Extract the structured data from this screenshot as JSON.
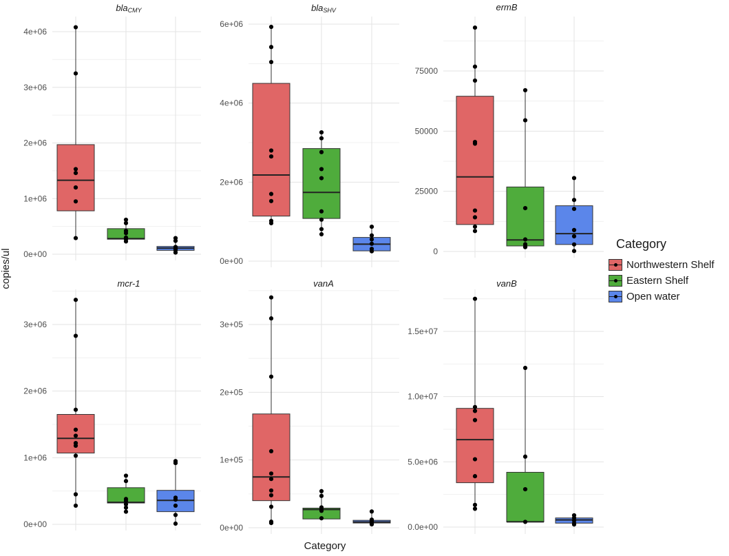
{
  "axes": {
    "xlabel": "Category",
    "ylabel": "copies/ul"
  },
  "legend": {
    "title": "Category",
    "items": [
      {
        "label": "Northwestern Shelf",
        "color": "#e06666"
      },
      {
        "label": "Eastern Shelf",
        "color": "#4fac3c"
      },
      {
        "label": "Open water",
        "color": "#5b86ea"
      }
    ]
  },
  "chart_data": [
    {
      "type": "box",
      "title": "blaCMY",
      "title_main": "bla",
      "title_sub": "CMY",
      "ylim": [
        0,
        4200000
      ],
      "ticks": [
        {
          "v": 0,
          "label": "0e+00"
        },
        {
          "v": 1000000,
          "label": "1e+06"
        },
        {
          "v": 2000000,
          "label": "2e+06"
        },
        {
          "v": 3000000,
          "label": "3e+06"
        },
        {
          "v": 4000000,
          "label": "4e+06"
        }
      ],
      "groups": [
        {
          "category": "Northwestern Shelf",
          "q1": 780000,
          "median": 1330000,
          "q3": 1970000,
          "whisker_low": 290000,
          "whisker_high": 4080000,
          "points": [
            4080000,
            3250000,
            1530000,
            1460000,
            1200000,
            950000,
            290000
          ]
        },
        {
          "category": "Eastern Shelf",
          "q1": 270000,
          "median": 280000,
          "q3": 460000,
          "whisker_low": 230000,
          "whisker_high": 620000,
          "points": [
            620000,
            560000,
            420000,
            380000,
            300000,
            270000,
            230000
          ]
        },
        {
          "category": "Open water",
          "q1": 70000,
          "median": 110000,
          "q3": 140000,
          "whisker_low": 30000,
          "whisker_high": 290000,
          "points": [
            290000,
            240000,
            130000,
            110000,
            90000,
            70000,
            30000
          ]
        }
      ]
    },
    {
      "type": "box",
      "title": "blaSHV",
      "title_main": "bla",
      "title_sub": "SHV",
      "ylim": [
        0,
        6000000
      ],
      "ticks": [
        {
          "v": 0,
          "label": "0e+00"
        },
        {
          "v": 2000000,
          "label": "2e+06"
        },
        {
          "v": 4000000,
          "label": "4e+06"
        },
        {
          "v": 6000000,
          "label": "6e+06"
        }
      ],
      "groups": [
        {
          "category": "Northwestern Shelf",
          "q1": 1140000,
          "median": 2180000,
          "q3": 4500000,
          "whisker_low": 960000,
          "whisker_high": 5930000,
          "points": [
            5930000,
            5420000,
            5040000,
            2800000,
            2650000,
            1700000,
            1520000,
            1020000,
            960000
          ]
        },
        {
          "category": "Eastern Shelf",
          "q1": 1080000,
          "median": 1740000,
          "q3": 2850000,
          "whisker_low": 680000,
          "whisker_high": 3260000,
          "points": [
            3260000,
            3110000,
            2760000,
            2330000,
            2100000,
            1260000,
            1050000,
            810000,
            680000
          ]
        },
        {
          "category": "Open water",
          "q1": 260000,
          "median": 430000,
          "q3": 600000,
          "whisker_low": 240000,
          "whisker_high": 870000,
          "points": [
            870000,
            650000,
            550000,
            440000,
            310000,
            250000
          ]
        }
      ]
    },
    {
      "type": "box",
      "title": "ermB",
      "title_main": "ermB",
      "title_sub": "",
      "ylim": [
        0,
        95000
      ],
      "ticks": [
        {
          "v": 0,
          "label": "0"
        },
        {
          "v": 25000,
          "label": "25000"
        },
        {
          "v": 50000,
          "label": "50000"
        },
        {
          "v": 75000,
          "label": "75000"
        }
      ],
      "groups": [
        {
          "category": "Northwestern Shelf",
          "q1": 11200,
          "median": 31000,
          "q3": 64500,
          "whisker_low": 8500,
          "whisker_high": 93000,
          "points": [
            93000,
            76800,
            71000,
            45500,
            44800,
            17000,
            14200,
            10300,
            8500
          ]
        },
        {
          "category": "Eastern Shelf",
          "q1": 2300,
          "median": 4800,
          "q3": 26800,
          "whisker_low": 1800,
          "whisker_high": 67000,
          "points": [
            67000,
            54500,
            18000,
            5000,
            3000,
            2200,
            1800
          ]
        },
        {
          "category": "Open water",
          "q1": 2900,
          "median": 7400,
          "q3": 19000,
          "whisker_low": 200,
          "whisker_high": 30500,
          "points": [
            30500,
            21400,
            17700,
            8900,
            6300,
            2900,
            200
          ]
        }
      ]
    },
    {
      "type": "box",
      "title": "mcr-1",
      "title_main": "mcr-1",
      "title_sub": "",
      "ylim": [
        0,
        3500000
      ],
      "ticks": [
        {
          "v": 0,
          "label": "0e+00"
        },
        {
          "v": 1000000,
          "label": "1e+06"
        },
        {
          "v": 2000000,
          "label": "2e+06"
        },
        {
          "v": 3000000,
          "label": "3e+06"
        }
      ],
      "groups": [
        {
          "category": "Northwestern Shelf",
          "q1": 1070000,
          "median": 1290000,
          "q3": 1650000,
          "whisker_low": 280000,
          "whisker_high": 3370000,
          "points": [
            3370000,
            2830000,
            1720000,
            1420000,
            1330000,
            1220000,
            1180000,
            1030000,
            450000,
            280000
          ]
        },
        {
          "category": "Eastern Shelf",
          "q1": 320000,
          "median": 330000,
          "q3": 550000,
          "whisker_low": 190000,
          "whisker_high": 730000,
          "points": [
            730000,
            650000,
            380000,
            350000,
            300000,
            250000,
            190000
          ]
        },
        {
          "category": "Open water",
          "q1": 190000,
          "median": 360000,
          "q3": 510000,
          "whisker_low": 10000,
          "whisker_high": 950000,
          "points": [
            950000,
            920000,
            400000,
            370000,
            280000,
            140000,
            10000
          ]
        }
      ]
    },
    {
      "type": "box",
      "title": "vanA",
      "title_main": "vanA",
      "title_sub": "",
      "ylim": [
        0,
        350000
      ],
      "ticks": [
        {
          "v": 0,
          "label": "0e+00"
        },
        {
          "v": 100000,
          "label": "1e+05"
        },
        {
          "v": 200000,
          "label": "2e+05"
        },
        {
          "v": 300000,
          "label": "3e+05"
        }
      ],
      "groups": [
        {
          "category": "Northwestern Shelf",
          "q1": 40000,
          "median": 75000,
          "q3": 168000,
          "whisker_low": 7000,
          "whisker_high": 340000,
          "points": [
            340000,
            309000,
            223000,
            113000,
            80000,
            72000,
            55000,
            48000,
            31000,
            9000,
            7000
          ]
        },
        {
          "category": "Eastern Shelf",
          "q1": 13000,
          "median": 27000,
          "q3": 29000,
          "whisker_low": 13000,
          "whisker_high": 54000,
          "points": [
            54000,
            47000,
            30000,
            27000,
            25000,
            14000
          ]
        },
        {
          "category": "Open water",
          "q1": 7000,
          "median": 8500,
          "q3": 11000,
          "whisker_low": 5000,
          "whisker_high": 24000,
          "points": [
            24000,
            12000,
            10000,
            8000,
            6000,
            5000
          ]
        }
      ]
    },
    {
      "type": "box",
      "title": "vanB",
      "title_main": "vanB",
      "title_sub": "",
      "ylim": [
        0,
        18000000
      ],
      "ticks": [
        {
          "v": 0,
          "label": "0.0e+00"
        },
        {
          "v": 5000000,
          "label": "5.0e+06"
        },
        {
          "v": 10000000,
          "label": "1.0e+07"
        },
        {
          "v": 15000000,
          "label": "1.5e+07"
        }
      ],
      "groups": [
        {
          "category": "Northwestern Shelf",
          "q1": 3400000,
          "median": 6700000,
          "q3": 9100000,
          "whisker_low": 1400000,
          "whisker_high": 17500000,
          "points": [
            17500000,
            9200000,
            8900000,
            8200000,
            5200000,
            3900000,
            1700000,
            1400000
          ]
        },
        {
          "category": "Eastern Shelf",
          "q1": 400000,
          "median": 400000,
          "q3": 4200000,
          "whisker_low": 400000,
          "whisker_high": 12200000,
          "points": [
            12200000,
            5400000,
            2900000,
            400000
          ]
        },
        {
          "category": "Open water",
          "q1": 300000,
          "median": 550000,
          "q3": 700000,
          "whisker_low": 200000,
          "whisker_high": 900000,
          "points": [
            900000,
            700000,
            500000,
            300000,
            200000
          ]
        }
      ]
    }
  ]
}
